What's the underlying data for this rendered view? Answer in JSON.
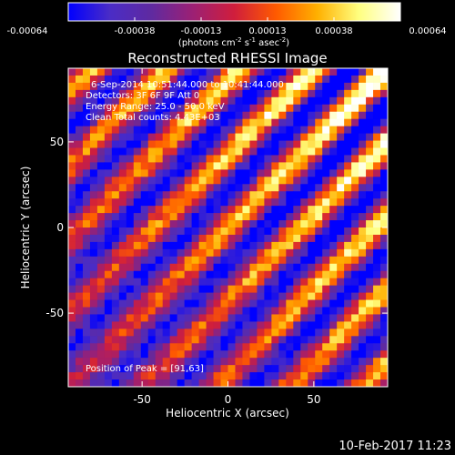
{
  "chart_data": {
    "type": "heatmap",
    "title": "Reconstructed RHESSI Image",
    "xlabel": "Heliocentric X (arcsec)",
    "ylabel": "Heliocentric Y (arcsec)",
    "xlim": [
      -93,
      93
    ],
    "ylim": [
      -93,
      93
    ],
    "x_ticks": [
      -50,
      0,
      50
    ],
    "y_ticks": [
      -50,
      0,
      50
    ],
    "grid": false,
    "colorbar": {
      "unit_label": "(photons cm",
      "unit_exp1": "-2",
      "unit_mid": " s",
      "unit_exp2": "-1",
      "unit_mid2": " asec",
      "unit_exp3": "-2",
      "unit_end": ")",
      "range": [
        -0.00064,
        0.00064
      ],
      "tick_labels": [
        "-0.00064",
        "-0.00038",
        "-0.00013",
        "0.00013",
        "0.00038",
        "0.00064"
      ],
      "colormap": [
        "#0000ff",
        "#4a2cc6",
        "#5f2aa0",
        "#9c2074",
        "#d01e3c",
        "#ff5a00",
        "#ffb000",
        "#ffff80",
        "#ffffff"
      ]
    },
    "annotations": [
      "6-Sep-2014 10:51:44.000 to 10:41:44.000",
      "Detectors: 3F 6F 9F  Att 0",
      "Energy Range: 25.0 - 50.0 keV",
      "Clean     Total counts: 4.43E+03"
    ],
    "peak_label": "Position of Peak = [91,63]",
    "grid_cells": 44,
    "stripe_pattern": "diagonal fringes running upper-left to lower-right; brightest in upper-right, fading to blue in lower-left"
  },
  "footer": {
    "timestamp": "10-Feb-2017 11:23"
  }
}
